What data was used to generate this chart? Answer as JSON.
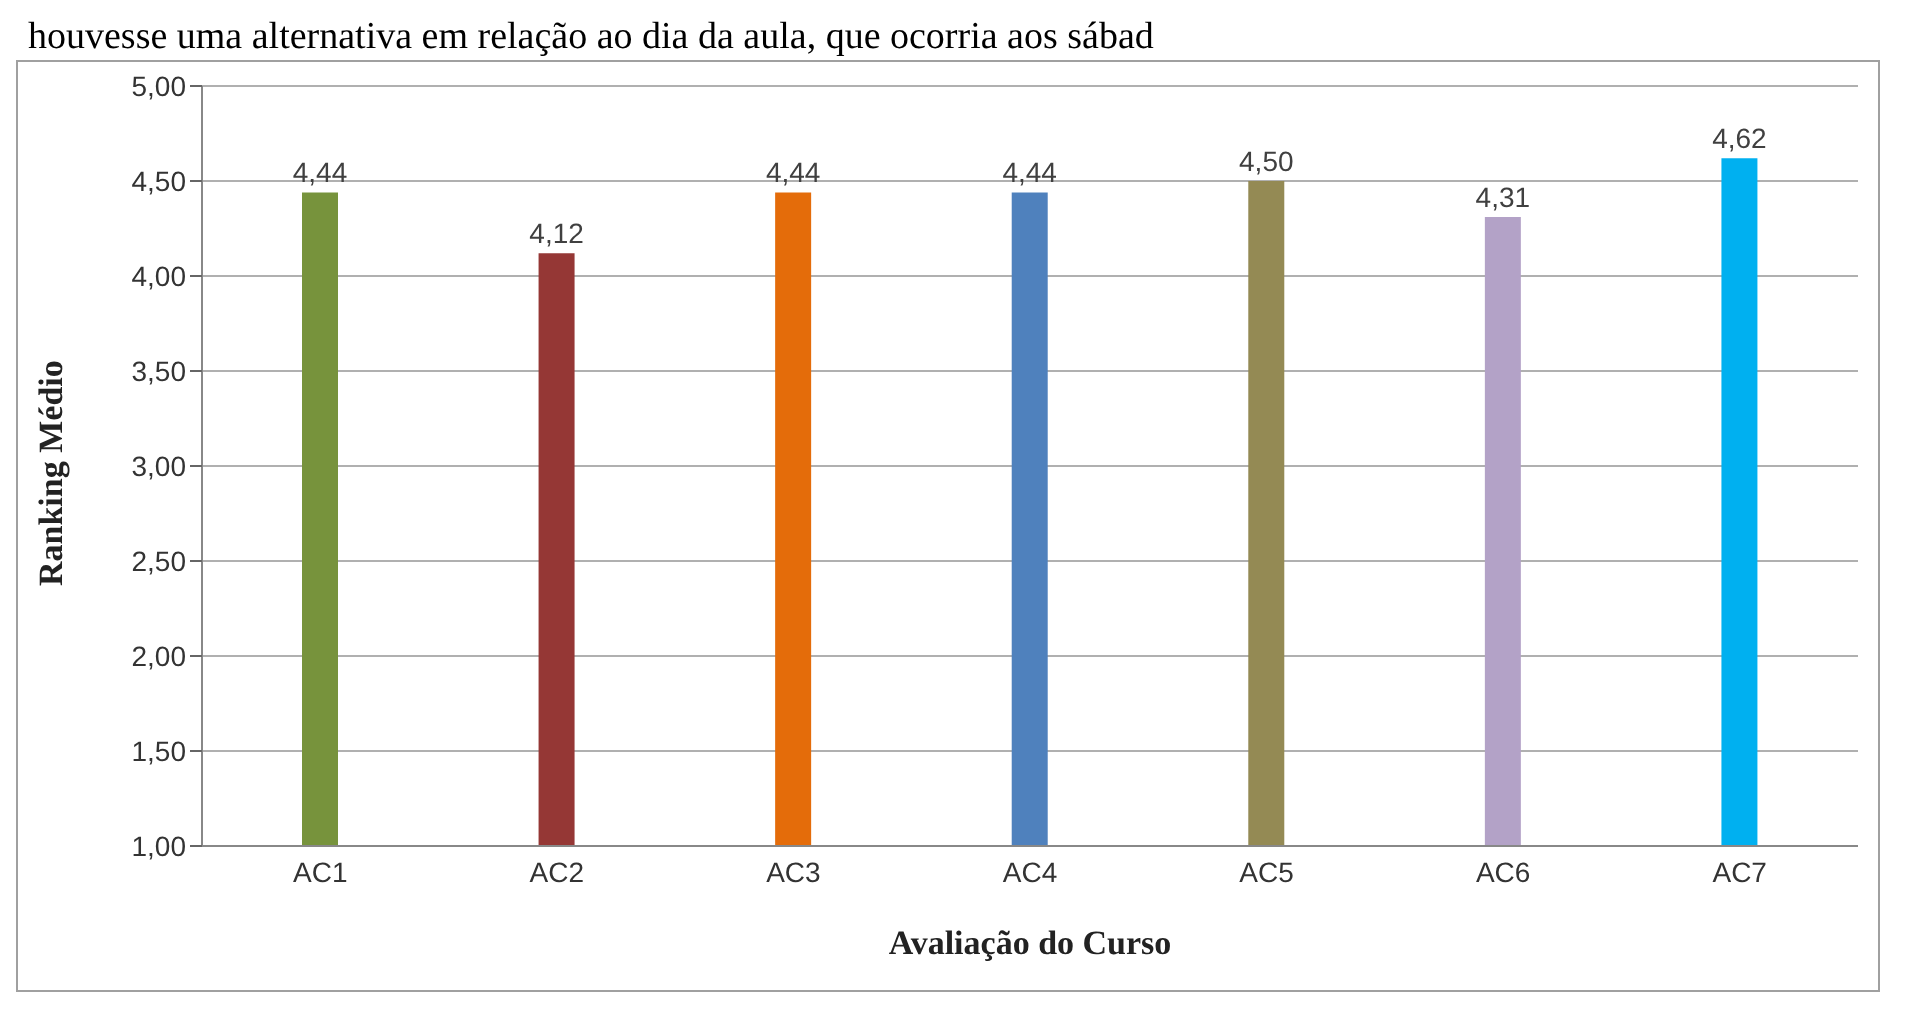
{
  "chart_data": {
    "type": "bar",
    "xlabel": "Avaliação do Curso",
    "ylabel": "Ranking Médio",
    "annotations": [
      "houvesse uma alternativa em relação ao dia da aula, que ocorria aos sábad"
    ],
    "categories": [
      "AC1",
      "AC2",
      "AC3",
      "AC4",
      "AC5",
      "AC6",
      "AC7"
    ],
    "values": [
      4.44,
      4.12,
      4.44,
      4.44,
      4.5,
      4.31,
      4.62
    ],
    "colors": [
      "#77933c",
      "#953735",
      "#e46c0a",
      "#4f81bd",
      "#948a54",
      "#b3a2c7",
      "#00b0f0"
    ],
    "value_labels": [
      "4,44",
      "4,12",
      "4,44",
      "4,44",
      "4,50",
      "4,31",
      "4,62"
    ],
    "ylim": [
      1,
      5
    ],
    "yticks": [
      {
        "value": 1,
        "label": "1,00"
      },
      {
        "value": 1.5,
        "label": "1,50"
      },
      {
        "value": 2,
        "label": "2,00"
      },
      {
        "value": 2.5,
        "label": "2,50"
      },
      {
        "value": 3,
        "label": "3,00"
      },
      {
        "value": 3.5,
        "label": "3,50"
      },
      {
        "value": 4,
        "label": "4,00"
      },
      {
        "value": 4.5,
        "label": "4,50"
      },
      {
        "value": 5,
        "label": "5,00"
      }
    ],
    "grid": "y"
  }
}
